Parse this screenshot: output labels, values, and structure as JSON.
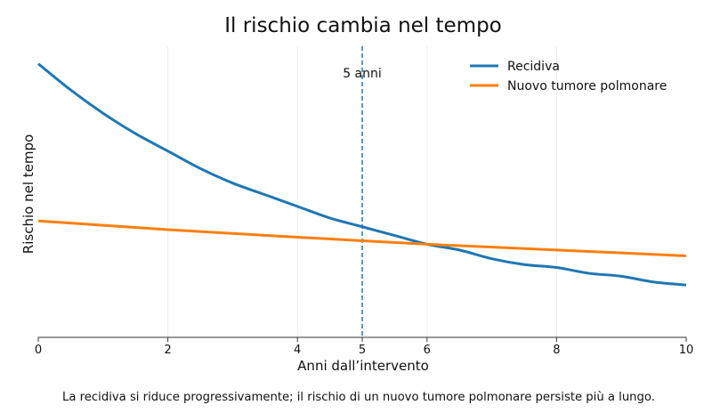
{
  "chart_data": {
    "type": "line",
    "title": "Il rischio cambia nel tempo",
    "xlabel": "Anni dall’intervento",
    "ylabel": "Rischio nel tempo",
    "caption": "La recidiva si riduce progressivamente; il rischio di un nuovo tumore polmonare persiste più a lungo.",
    "xlim": [
      0,
      10
    ],
    "ylim": [
      0,
      1
    ],
    "x_ticks": [
      0,
      2,
      4,
      5,
      6,
      8,
      10
    ],
    "x_tick_labels": [
      "0",
      "2",
      "4",
      "5",
      "6",
      "8",
      "10"
    ],
    "grid": "vertical",
    "legend_position": "top-right",
    "series": [
      {
        "name": "Recidiva",
        "color": "#1f77b4",
        "x": [
          0,
          0.5,
          1,
          1.5,
          2,
          2.5,
          3,
          3.5,
          4,
          4.5,
          5,
          5.5,
          6,
          6.5,
          7,
          7.5,
          8,
          8.5,
          9,
          9.5,
          10
        ],
        "y": [
          0.94,
          0.85,
          0.77,
          0.7,
          0.64,
          0.58,
          0.53,
          0.49,
          0.45,
          0.41,
          0.38,
          0.35,
          0.32,
          0.3,
          0.27,
          0.25,
          0.24,
          0.22,
          0.21,
          0.19,
          0.18
        ]
      },
      {
        "name": "Nuovo tumore polmonare",
        "color": "#ff7f0e",
        "x": [
          0,
          1,
          2,
          3,
          4,
          5,
          6,
          7,
          8,
          9,
          10
        ],
        "y": [
          0.4,
          0.385,
          0.37,
          0.357,
          0.344,
          0.332,
          0.32,
          0.31,
          0.3,
          0.29,
          0.28
        ]
      }
    ],
    "annotations": [
      {
        "x": 5,
        "label": "5 anni",
        "style": "dashed-vertical-line",
        "color": "#1f77b4"
      }
    ]
  }
}
